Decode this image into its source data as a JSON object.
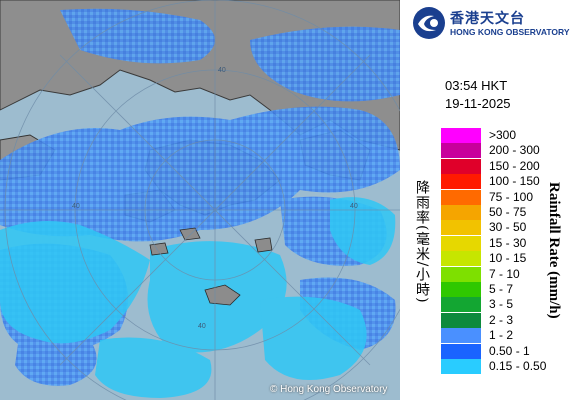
{
  "map": {
    "copyright": "© Hong Kong Observatory",
    "range_ring_labels": [
      "40",
      "40",
      "40",
      "40"
    ]
  },
  "header": {
    "org_name_zh": "香港天文台",
    "org_name_en": "HONG KONG OBSERVATORY",
    "logo_icon": "hko-logo-icon"
  },
  "timestamp": {
    "time": "03:54 HKT",
    "date": "19-11-2025"
  },
  "legend": {
    "title_zh": "降雨率(毫米/小時)",
    "title_en": "Rainfall Rate (mm/h)",
    "items": [
      {
        "label": ">300",
        "color": "#ff00ff"
      },
      {
        "label": "200 - 300",
        "color": "#c8009c"
      },
      {
        "label": "150 - 200",
        "color": "#e0002a"
      },
      {
        "label": "100 - 150",
        "color": "#ff1a00"
      },
      {
        "label": "75 - 100",
        "color": "#ff6a00"
      },
      {
        "label": "50 - 75",
        "color": "#f5a500"
      },
      {
        "label": "30 - 50",
        "color": "#f2c200"
      },
      {
        "label": "15 - 30",
        "color": "#e6d800"
      },
      {
        "label": "10 - 15",
        "color": "#c6e600"
      },
      {
        "label": "7 - 10",
        "color": "#7ee000"
      },
      {
        "label": "5 - 7",
        "color": "#2fc800"
      },
      {
        "label": "3 - 5",
        "color": "#13a632"
      },
      {
        "label": "2 - 3",
        "color": "#0d8a3c"
      },
      {
        "label": "1 - 2",
        "color": "#4a90ff"
      },
      {
        "label": "0.50 - 1",
        "color": "#1a64ff"
      },
      {
        "label": "0.15 - 0.50",
        "color": "#29ccff"
      }
    ]
  }
}
